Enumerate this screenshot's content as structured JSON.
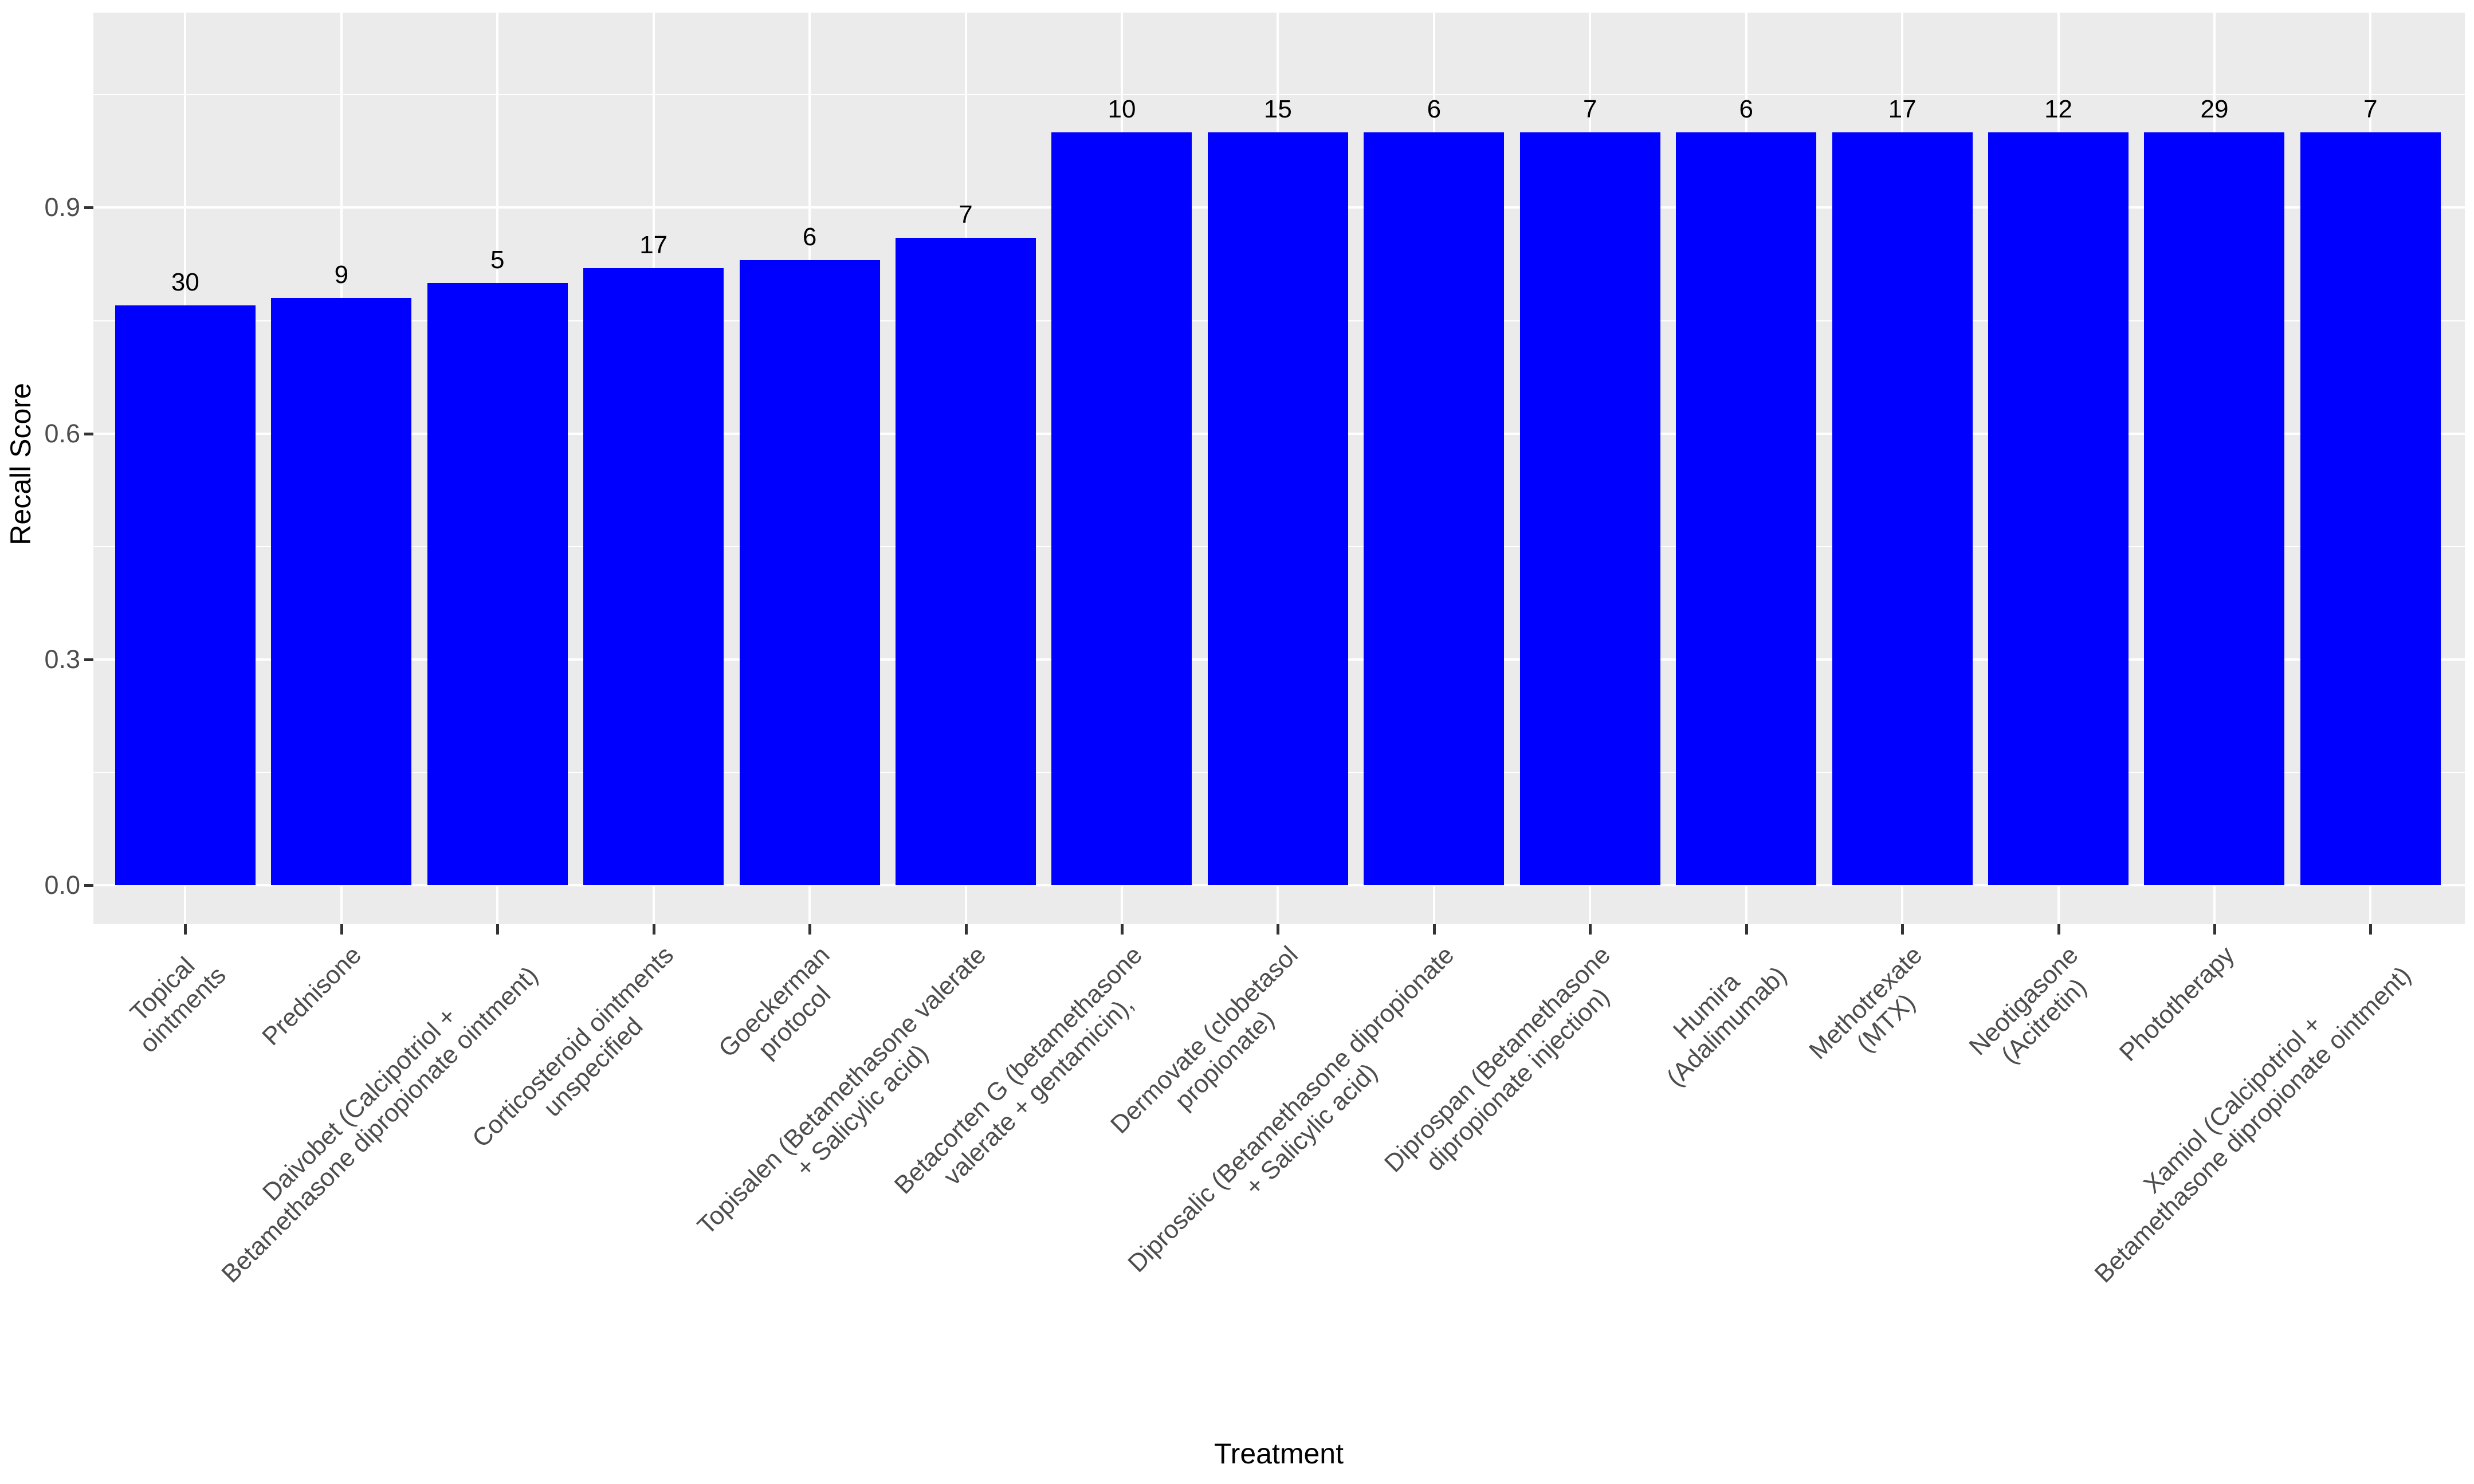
{
  "chart_data": {
    "type": "bar",
    "title": "",
    "xlabel": "Treatment",
    "ylabel": "Recall Score",
    "categories": [
      "Topical\nointments",
      "Prednisone",
      "Daivobet (Calcipotriol +\nBetamethasone dipropionate ointment)",
      "Corticosteroid ointments\nunspecified",
      "Goeckerman\nprotocol",
      "Topisalen (Betamethasone valerate\n+ Salicylic acid)",
      "Betacorten G (betamethasone\nvalerate + gentamicin),",
      "Dermovate (clobetasol\npropionate)",
      "Diprosalic (Betamethasone dipropionate\n+ Salicylic acid)",
      "Diprospan (Betamethasone\ndipropionate injection)",
      "Humira\n(Adalimumab)",
      "Methotrexate\n(MTX)",
      "Neotigasone\n(Acitretin)",
      "Phototherapy",
      "Xamiol (Calcipotriol +\nBetamethasone dipropionate ointment)"
    ],
    "values": [
      0.77,
      0.78,
      0.8,
      0.82,
      0.83,
      0.86,
      1.0,
      1.0,
      1.0,
      1.0,
      1.0,
      1.0,
      1.0,
      1.0,
      1.0
    ],
    "bar_labels": [
      30,
      9,
      5,
      17,
      6,
      7,
      10,
      15,
      6,
      7,
      6,
      17,
      12,
      29,
      7
    ],
    "ytick_labels": [
      "0.0",
      "0.3",
      "0.6",
      "0.9"
    ],
    "ytick_values": [
      0.0,
      0.3,
      0.6,
      0.9
    ],
    "yminor_values": [
      0.15,
      0.45,
      0.75,
      1.05
    ],
    "ylim": [
      -0.055,
      1.16
    ],
    "grid": "white major+minor horizontal lines, white major vertical lines at category centers",
    "legend": "none",
    "bar_color": "#0000FF",
    "panel_background": "#EBEBEB",
    "grid_color": "#FFFFFF",
    "axis_text_color": "#4D4D4D",
    "tick_color": "#333333"
  }
}
